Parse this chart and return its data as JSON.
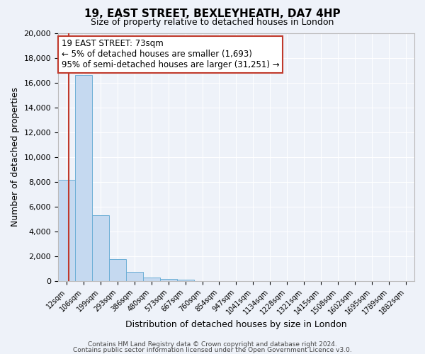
{
  "title": "19, EAST STREET, BEXLEYHEATH, DA7 4HP",
  "subtitle": "Size of property relative to detached houses in London",
  "xlabel": "Distribution of detached houses by size in London",
  "ylabel": "Number of detached properties",
  "bar_labels": [
    "12sqm",
    "106sqm",
    "199sqm",
    "293sqm",
    "386sqm",
    "480sqm",
    "573sqm",
    "667sqm",
    "760sqm",
    "854sqm",
    "947sqm",
    "1041sqm",
    "1134sqm",
    "1228sqm",
    "1321sqm",
    "1415sqm",
    "1508sqm",
    "1602sqm",
    "1695sqm",
    "1789sqm",
    "1882sqm"
  ],
  "bar_heights": [
    8200,
    16600,
    5300,
    1800,
    750,
    300,
    200,
    150,
    0,
    0,
    0,
    0,
    0,
    0,
    0,
    0,
    0,
    0,
    0,
    0,
    0
  ],
  "bar_color": "#c5d9f0",
  "bar_edge_color": "#6baed6",
  "background_color": "#eef2f9",
  "plot_bg_color": "#eef2f9",
  "grid_color": "#ffffff",
  "ylim": [
    0,
    20000
  ],
  "yticks": [
    0,
    2000,
    4000,
    6000,
    8000,
    10000,
    12000,
    14000,
    16000,
    18000,
    20000
  ],
  "property_sqm": 73,
  "bin_edges": [
    12,
    106,
    199,
    293,
    386,
    480,
    573,
    667,
    760,
    854,
    947,
    1041,
    1134,
    1228,
    1321,
    1415,
    1508,
    1602,
    1695,
    1789,
    1882
  ],
  "annotation_title": "19 EAST STREET: 73sqm",
  "annotation_line1": "← 5% of detached houses are smaller (1,693)",
  "annotation_line2": "95% of semi-detached houses are larger (31,251) →",
  "red_line_color": "#c0392b",
  "annotation_box_color": "#ffffff",
  "annotation_box_edge": "#c0392b",
  "footer1": "Contains HM Land Registry data © Crown copyright and database right 2024.",
  "footer2": "Contains public sector information licensed under the Open Government Licence v3.0."
}
